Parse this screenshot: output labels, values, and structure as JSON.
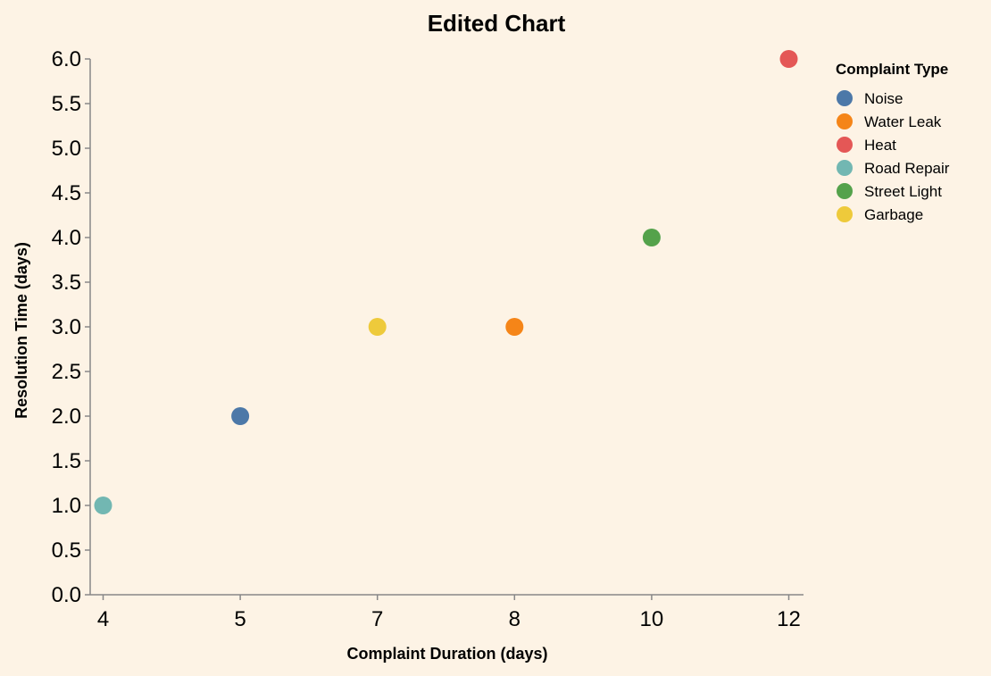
{
  "chart_data": {
    "type": "scatter",
    "title": "Edited Chart",
    "xlabel": "Complaint Duration (days)",
    "ylabel": "Resolution Time (days)",
    "x_tick_labels": [
      "4",
      "5",
      "7",
      "8",
      "10",
      "12"
    ],
    "y_tick_labels": [
      "0.0",
      "0.5",
      "1.0",
      "1.5",
      "2.0",
      "2.5",
      "3.0",
      "3.5",
      "4.0",
      "4.5",
      "5.0",
      "5.5",
      "6.0"
    ],
    "ylim": [
      0,
      6
    ],
    "grid": false,
    "legend": {
      "title": "Complaint Type",
      "placement": "right"
    },
    "series": [
      {
        "name": "Noise",
        "color": "#4c78a8",
        "x": "5",
        "y": 2
      },
      {
        "name": "Water Leak",
        "color": "#f58518",
        "x": "8",
        "y": 3
      },
      {
        "name": "Heat",
        "color": "#e45756",
        "x": "12",
        "y": 6
      },
      {
        "name": "Road Repair",
        "color": "#72b7b2",
        "x": "4",
        "y": 1
      },
      {
        "name": "Street Light",
        "color": "#54a24b",
        "x": "10",
        "y": 4
      },
      {
        "name": "Garbage",
        "color": "#eeca3b",
        "x": "7",
        "y": 3
      }
    ]
  }
}
